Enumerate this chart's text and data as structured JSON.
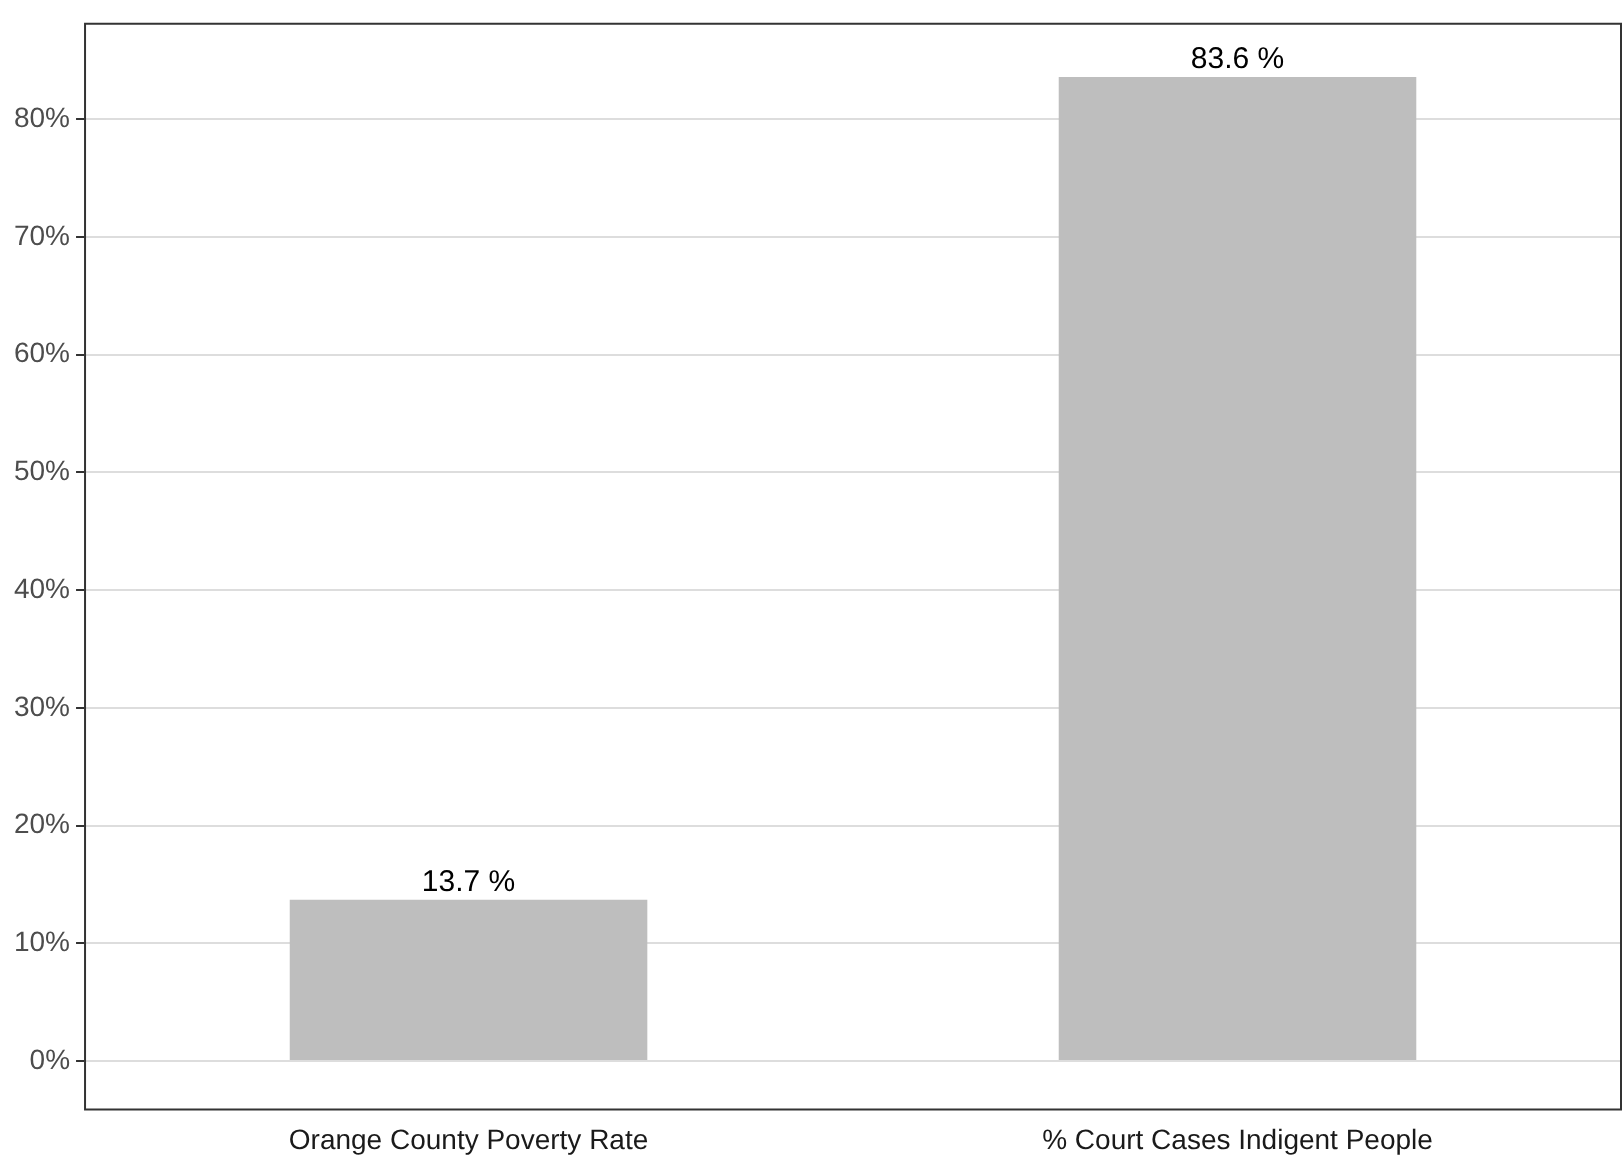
{
  "chart_data": {
    "type": "bar",
    "categories": [
      "Orange County Poverty Rate",
      "% Court Cases Indigent People"
    ],
    "values": [
      13.7,
      83.6
    ],
    "value_labels": [
      "13.7 %",
      "83.6 %"
    ],
    "color": "#bebebe",
    "ylim": [
      -4.2,
      88.2
    ],
    "yticks": [
      {
        "value": 0,
        "label": "0%"
      },
      {
        "value": 10,
        "label": "10%"
      },
      {
        "value": 20,
        "label": "20%"
      },
      {
        "value": 30,
        "label": "30%"
      },
      {
        "value": 40,
        "label": "40%"
      },
      {
        "value": 50,
        "label": "50%"
      },
      {
        "value": 60,
        "label": "60%"
      },
      {
        "value": 70,
        "label": "70%"
      },
      {
        "value": 80,
        "label": "80%"
      }
    ],
    "grid": "y",
    "legend": false
  }
}
